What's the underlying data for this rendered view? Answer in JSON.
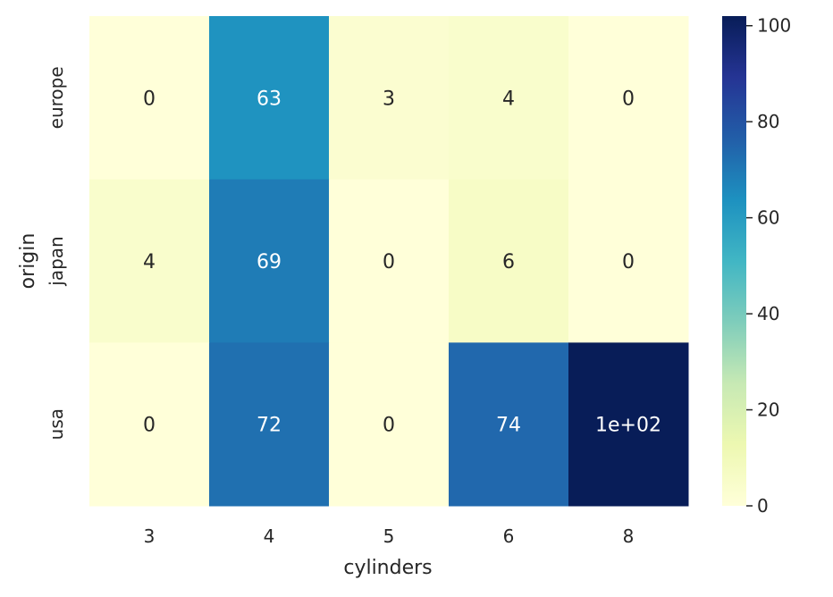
{
  "chart_data": {
    "type": "heatmap",
    "title": "",
    "xlabel": "cylinders",
    "ylabel": "origin",
    "x_categories": [
      "3",
      "4",
      "5",
      "6",
      "8"
    ],
    "y_categories": [
      "europe",
      "japan",
      "usa"
    ],
    "values": [
      [
        0,
        63,
        3,
        4,
        0
      ],
      [
        4,
        69,
        0,
        6,
        0
      ],
      [
        0,
        72,
        0,
        74,
        102
      ]
    ],
    "annotations": [
      [
        "0",
        "63",
        "3",
        "4",
        "0"
      ],
      [
        "4",
        "69",
        "0",
        "6",
        "0"
      ],
      [
        "0",
        "72",
        "0",
        "74",
        "1e+02"
      ]
    ],
    "colormap": "YlGnBu",
    "vmin": 0,
    "vmax": 102,
    "colorbar": {
      "ticks": [
        0,
        20,
        40,
        60,
        80,
        100
      ],
      "tick_labels": [
        "0",
        "20",
        "40",
        "60",
        "80",
        "100"
      ]
    },
    "grid": false,
    "legend": "colorbar-right"
  }
}
